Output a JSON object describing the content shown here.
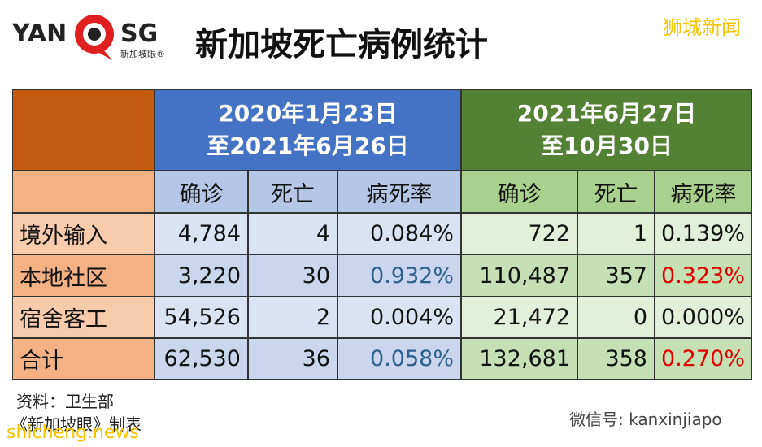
{
  "header": {
    "logo": {
      "left": "YAN",
      "right": "SG",
      "sub": "新加坡眼®"
    },
    "title": "新加坡死亡病例统计",
    "watermark": "狮城新闻"
  },
  "table": {
    "periods": [
      [
        "2020年1月23日",
        "至2021年6月26日"
      ],
      [
        "2021年6月27日",
        "至10月30日"
      ]
    ],
    "columns": [
      "确诊",
      "死亡",
      "病死率",
      "确诊",
      "死亡",
      "病死率"
    ],
    "rows": [
      [
        "境外输入",
        "4,784",
        "4",
        "0.084%",
        "722",
        "1",
        "0.139%"
      ],
      [
        "本地社区",
        "3,220",
        "30",
        "0.932%",
        "110,487",
        "357",
        "0.323%"
      ],
      [
        "宿舍客工",
        "54,526",
        "2",
        "0.004%",
        "21,472",
        "0",
        "0.000%"
      ],
      [
        "合计",
        "62,530",
        "36",
        "0.058%",
        "132,681",
        "358",
        "0.270%"
      ]
    ]
  },
  "footer": {
    "source": "资料：卫生部",
    "maker": "《新加坡眼》制表",
    "wechat": "微信号: kanxinjiapo",
    "site": "shicheng.news"
  }
}
